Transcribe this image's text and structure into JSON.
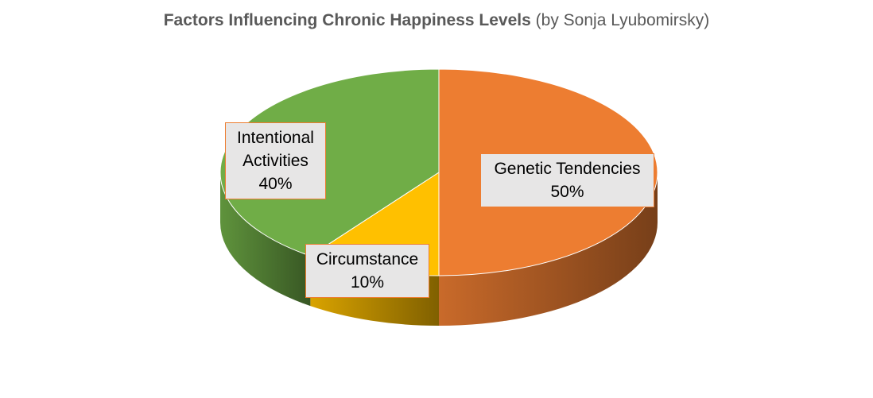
{
  "chart_data": {
    "type": "pie3d",
    "title": "Factors Influencing Chronic Happiness Levels",
    "subtitle": "(by Sonja Lyubomirsky)",
    "categories": [
      "Genetic Tendencies",
      "Circumstance",
      "Intentional Activities"
    ],
    "values": [
      50,
      10,
      40
    ],
    "value_labels": [
      "50%",
      "10%",
      "40%"
    ],
    "colors": [
      "#ED7D31",
      "#FFC000",
      "#70AD47"
    ]
  }
}
